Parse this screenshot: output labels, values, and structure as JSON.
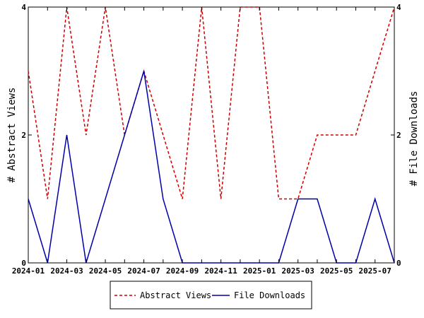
{
  "chart_data": {
    "type": "line",
    "title": "",
    "xlabel": "",
    "ylabel_left": "# Abstract Views",
    "ylabel_right": "# File Downloads",
    "ylim_left": [
      0,
      4
    ],
    "ylim_right": [
      0,
      4
    ],
    "yticks": [
      0,
      2,
      4
    ],
    "months": [
      "2024-01",
      "2024-02",
      "2024-03",
      "2024-04",
      "2024-05",
      "2024-06",
      "2024-07",
      "2024-08",
      "2024-09",
      "2024-10",
      "2024-11",
      "2024-12",
      "2025-01",
      "2025-02",
      "2025-03",
      "2025-04",
      "2025-05",
      "2025-06",
      "2025-07",
      "2025-08"
    ],
    "xtick_labels": [
      "2024-01",
      "2024-03",
      "2024-05",
      "2024-07",
      "2024-09",
      "2024-11",
      "2025-01",
      "2025-03",
      "2025-05",
      "2025-07"
    ],
    "series": [
      {
        "name": "Abstract Views",
        "axis": "left",
        "color": "#cc0000",
        "dash": "dashed",
        "values": [
          3,
          1,
          4,
          2,
          4,
          2,
          3,
          2,
          1,
          4,
          1,
          4,
          4,
          1,
          1,
          2,
          2,
          2,
          3,
          4
        ]
      },
      {
        "name": "File Downloads",
        "axis": "right",
        "color": "#0000aa",
        "dash": "solid",
        "values": [
          1,
          0,
          2,
          0,
          1,
          2,
          3,
          1,
          0,
          0,
          0,
          0,
          0,
          0,
          1,
          1,
          0,
          0,
          1,
          0
        ]
      }
    ],
    "grid": false,
    "legend_position": "bottom"
  }
}
